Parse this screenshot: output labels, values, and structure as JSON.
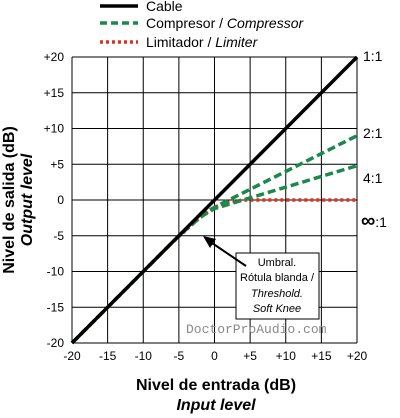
{
  "chart_data": {
    "type": "line",
    "xlabel": "Nivel de entrada (dB)",
    "xlabel_sub": "Input level",
    "ylabel": "Nivel de salida (dB)",
    "ylabel_sub": "Output level",
    "xlim": [
      -20,
      20
    ],
    "ylim": [
      -20,
      20
    ],
    "x_ticks": [
      "-20",
      "-15",
      "-10",
      "-5",
      "0",
      "+5",
      "+10",
      "+15",
      "+20"
    ],
    "y_ticks": [
      "-20",
      "-15",
      "-10",
      "-5",
      "0",
      "+5",
      "+10",
      "+15",
      "+20"
    ],
    "grid": true,
    "legend_position": "top",
    "series": [
      {
        "name": "Cable",
        "name_alt": "",
        "color": "#000000",
        "style": "solid",
        "points": [
          [
            -20,
            -20
          ],
          [
            20,
            20
          ]
        ]
      },
      {
        "name": "Compresor / ",
        "name_alt": "Compressor",
        "color": "#1a8a4a",
        "style": "dashed",
        "points": [
          [
            -20,
            -20
          ],
          [
            -5,
            -5
          ],
          [
            -2,
            -2.2
          ],
          [
            0,
            -1
          ],
          [
            20,
            9
          ]
        ]
      },
      {
        "name": "Compresor / ",
        "name_alt": "Compressor",
        "color": "#1a8a4a",
        "style": "dashed",
        "points": [
          [
            -20,
            -20
          ],
          [
            -5,
            -5
          ],
          [
            -2,
            -2.4
          ],
          [
            0,
            -1.2
          ],
          [
            20,
            4.8
          ]
        ]
      },
      {
        "name": "Limitador / ",
        "name_alt": "Limiter",
        "color": "#e03020",
        "style": "dotted",
        "points": [
          [
            -20,
            -20
          ],
          [
            -6,
            -6
          ],
          [
            -4,
            -4.2
          ],
          [
            -2,
            -2.4
          ],
          [
            0,
            -1
          ],
          [
            2,
            -0.3
          ],
          [
            4,
            0
          ],
          [
            20,
            0
          ]
        ]
      }
    ],
    "ratio_labels": [
      "1:1",
      "2:1",
      "4:1",
      "∞",
      ":1"
    ],
    "annotation": {
      "lines": [
        "Umbral.",
        "Rótula blanda /",
        "Threshold.",
        "Soft Knee"
      ],
      "arrow_target": [
        -1.5,
        -5
      ]
    },
    "watermark": "DoctorProAudio.com"
  }
}
